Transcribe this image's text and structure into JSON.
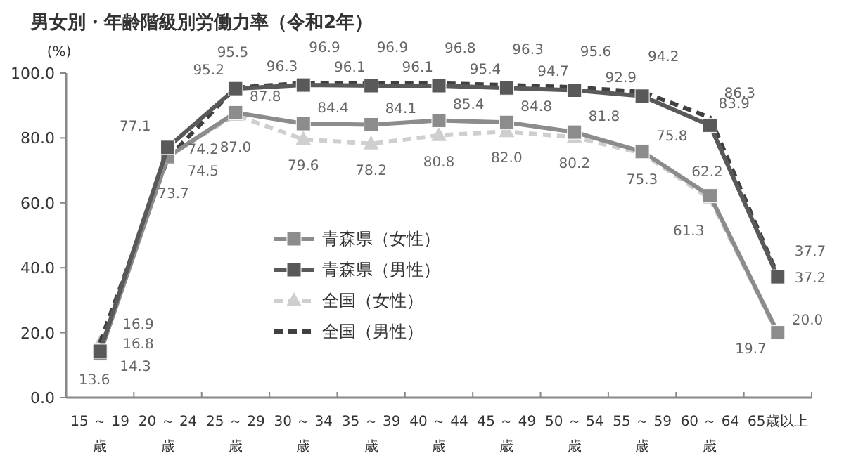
{
  "chart_data": {
    "type": "line",
    "title": "男女別・年齢階級別労働力率（令和2年）",
    "ylabel": "(%)",
    "categories": [
      "15 ～ 19歳",
      "20 ～ 24歳",
      "25 ～ 29歳",
      "30 ～ 34歳",
      "35 ～ 39歳",
      "40 ～ 44歳",
      "45 ～ 49歳",
      "50 ～ 54歳",
      "55 ～ 59歳",
      "60 ～ 64歳",
      "65歳以上"
    ],
    "series": [
      {
        "name": "青森県（女性）",
        "color": "#8c8c8c",
        "marker": "square",
        "line_style": "solid",
        "values": [
          13.6,
          74.2,
          87.8,
          84.4,
          84.1,
          85.4,
          84.8,
          81.8,
          75.8,
          62.2,
          20.0
        ],
        "value_labels": [
          "13.6",
          "74.2",
          "87.8",
          "84.4",
          "84.1",
          "85.4",
          "84.8",
          "81.8",
          "75.8",
          "62.2",
          "20.0"
        ]
      },
      {
        "name": "青森県（男性）",
        "color": "#595959",
        "marker": "square",
        "line_style": "solid",
        "values": [
          14.3,
          77.1,
          95.2,
          96.3,
          96.1,
          96.1,
          95.4,
          94.7,
          92.9,
          83.9,
          37.2
        ],
        "value_labels": [
          "14.3",
          "77.1",
          "95.2",
          "96.3",
          "96.1",
          "96.1",
          "95.4",
          "94.7",
          "92.9",
          "83.9",
          "37.2"
        ]
      },
      {
        "name": "全国（女性）",
        "color": "#cfcfcf",
        "marker": "triangle",
        "line_style": "dashed",
        "values": [
          16.8,
          74.5,
          87.0,
          79.6,
          78.2,
          80.8,
          82.0,
          80.2,
          75.3,
          61.3,
          19.7
        ],
        "value_labels": [
          "16.8",
          "74.5",
          "87.0",
          "79.6",
          "78.2",
          "80.8",
          "82.0",
          "80.2",
          "75.3",
          "61.3",
          "19.7"
        ]
      },
      {
        "name": "全国（男性）",
        "color": "#404040",
        "marker": "none",
        "line_style": "dashed",
        "values": [
          16.9,
          73.7,
          95.5,
          96.9,
          96.9,
          96.8,
          96.3,
          95.6,
          94.2,
          86.3,
          37.7
        ],
        "value_labels": [
          "16.9",
          "73.7",
          "95.5",
          "96.9",
          "96.9",
          "96.8",
          "96.3",
          "95.6",
          "94.2",
          "86.3",
          "37.7"
        ]
      }
    ],
    "ylim": [
      0,
      100
    ],
    "yticks": [
      {
        "value": 0,
        "label": "0.0"
      },
      {
        "value": 20,
        "label": "20.0"
      },
      {
        "value": 40,
        "label": "40.0"
      },
      {
        "value": 60,
        "label": "60.0"
      },
      {
        "value": 80,
        "label": "80.0"
      },
      {
        "value": 100,
        "label": "100.0"
      }
    ],
    "legend": "center",
    "grid": false
  }
}
